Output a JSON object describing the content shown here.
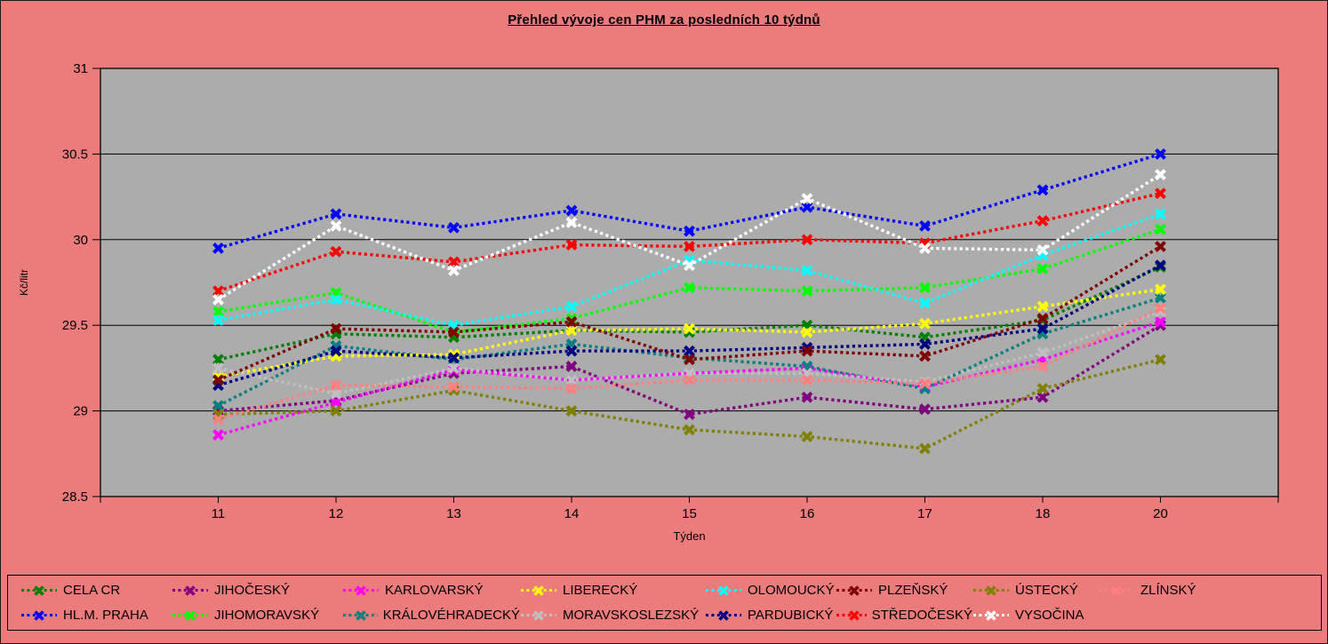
{
  "title": "Přehled vývoje cen PHM za posledních 10 týdnů",
  "chart_data": {
    "type": "line",
    "title": "Přehled vývoje cen PHM za posledních 10 týdnů",
    "xlabel": "Týden",
    "ylabel": "Kč/litr",
    "ylim": [
      28.5,
      31
    ],
    "ytick_step": 0.5,
    "ytick_labels": [
      "28.5",
      "29",
      "29.5",
      "30",
      "30.5",
      "31"
    ],
    "grid": "horizontal",
    "legend_position": "bottom",
    "line_style": "dotted",
    "marker": "x",
    "page_bg": "#EC7B7B",
    "plot_bg": "#ACACAC",
    "grid_color": "#000000",
    "categories": [
      "11",
      "12",
      "13",
      "14",
      "15",
      "16",
      "17",
      "18",
      "20"
    ],
    "series": [
      {
        "name": "CELA CR",
        "color": "#008000",
        "values": [
          29.3,
          29.45,
          29.43,
          29.47,
          29.46,
          29.5,
          29.43,
          29.53,
          29.84
        ]
      },
      {
        "name": "HL.M. PRAHA",
        "color": "#0000FF",
        "values": [
          29.95,
          30.15,
          30.07,
          30.17,
          30.05,
          30.19,
          30.08,
          30.29,
          30.5
        ]
      },
      {
        "name": "JIHOČESKÝ",
        "color": "#800080",
        "values": [
          29.0,
          29.06,
          29.22,
          29.26,
          28.98,
          29.08,
          29.01,
          29.08,
          29.5
        ]
      },
      {
        "name": "JIHOMORAVSKÝ",
        "color": "#00FF00",
        "values": [
          29.58,
          29.69,
          29.46,
          29.54,
          29.72,
          29.7,
          29.72,
          29.83,
          30.06
        ]
      },
      {
        "name": "KARLOVARSKÝ",
        "color": "#FF00FF",
        "values": [
          28.86,
          29.05,
          29.24,
          29.18,
          29.22,
          29.25,
          29.14,
          29.3,
          29.52
        ]
      },
      {
        "name": "KRÁLOVÉHRADECKÝ",
        "color": "#008080",
        "values": [
          29.03,
          29.38,
          29.3,
          29.39,
          29.31,
          29.26,
          29.13,
          29.45,
          29.66
        ]
      },
      {
        "name": "LIBERECKÝ",
        "color": "#FFFF00",
        "values": [
          29.2,
          29.32,
          29.33,
          29.47,
          29.48,
          29.46,
          29.51,
          29.61,
          29.71
        ]
      },
      {
        "name": "MORAVSKOSLEZSKÝ",
        "color": "#C0C0C0",
        "values": [
          29.25,
          29.1,
          29.25,
          29.18,
          29.22,
          29.22,
          29.17,
          29.34,
          29.58
        ]
      },
      {
        "name": "OLOMOUCKÝ",
        "color": "#00FFFF",
        "values": [
          29.53,
          29.65,
          29.5,
          29.61,
          29.88,
          29.82,
          29.63,
          29.91,
          30.15
        ]
      },
      {
        "name": "PARDUBICKÝ",
        "color": "#000080",
        "values": [
          29.15,
          29.35,
          29.31,
          29.35,
          29.35,
          29.37,
          29.39,
          29.48,
          29.85
        ]
      },
      {
        "name": "PLZEŇSKÝ",
        "color": "#800000",
        "values": [
          29.18,
          29.48,
          29.46,
          29.52,
          29.3,
          29.35,
          29.32,
          29.54,
          29.96
        ]
      },
      {
        "name": "STŘEDOČESKÝ",
        "color": "#FF0000",
        "values": [
          29.7,
          29.93,
          29.87,
          29.97,
          29.96,
          30.0,
          29.98,
          30.11,
          30.27
        ]
      },
      {
        "name": "ÚSTECKÝ",
        "color": "#808000",
        "values": [
          28.98,
          29.0,
          29.12,
          29.0,
          28.89,
          28.85,
          28.78,
          29.13,
          29.3
        ]
      },
      {
        "name": "VYSOČINA",
        "color": "#FFFFFF",
        "values": [
          29.65,
          30.08,
          29.82,
          30.1,
          29.85,
          30.24,
          29.95,
          29.94,
          30.38
        ]
      },
      {
        "name": "ZLÍNSKÝ",
        "color": "#FF8080",
        "values": [
          28.95,
          29.15,
          29.14,
          29.13,
          29.18,
          29.18,
          29.16,
          29.26,
          29.6
        ]
      }
    ]
  }
}
